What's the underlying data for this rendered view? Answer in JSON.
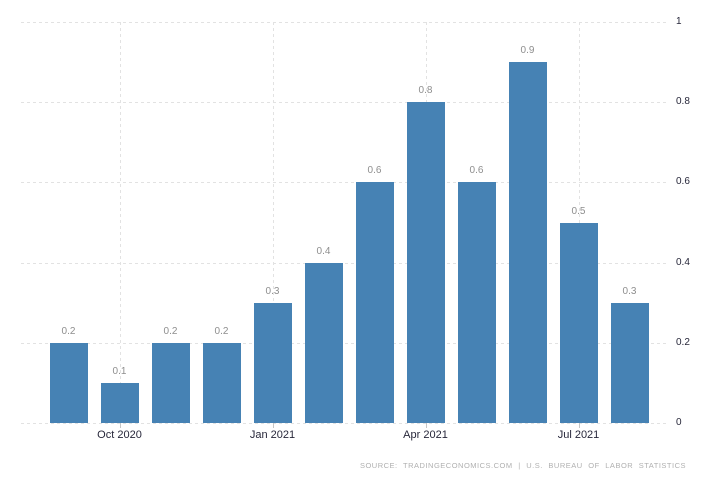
{
  "chart_data": {
    "type": "bar",
    "title": "",
    "xlabel": "",
    "ylabel": "",
    "ylim": [
      0,
      1
    ],
    "grid": true,
    "legend": "none",
    "values": [
      0.2,
      0.1,
      0.2,
      0.2,
      0.3,
      0.4,
      0.6,
      0.8,
      0.6,
      0.9,
      0.5,
      0.3
    ],
    "value_labels": [
      "0.2",
      "0.1",
      "0.2",
      "0.2",
      "0.3",
      "0.4",
      "0.6",
      "0.8",
      "0.6",
      "0.9",
      "0.5",
      "0.3"
    ],
    "x_ticks": [
      {
        "label": "Oct 2020",
        "bar_index": 1
      },
      {
        "label": "Jan 2021",
        "bar_index": 4
      },
      {
        "label": "Apr 2021",
        "bar_index": 7
      },
      {
        "label": "Jul 2021",
        "bar_index": 10
      }
    ],
    "y_ticks": [
      {
        "label": "0",
        "value": 0
      },
      {
        "label": "0.2",
        "value": 0.2
      },
      {
        "label": "0.4",
        "value": 0.4
      },
      {
        "label": "0.6",
        "value": 0.6
      },
      {
        "label": "0.8",
        "value": 0.8
      },
      {
        "label": "1",
        "value": 1
      }
    ],
    "colors": {
      "bar": "#4682b4",
      "value_label": "#8e8e8e",
      "axis_label": "#27273a",
      "gridline": "#e2e2e2",
      "tick_mark": "#c6c6c6",
      "source_text": "#b0b0b0",
      "background": "#ffffff"
    }
  },
  "footer": {
    "source_text": "SOURCE: TRADINGECONOMICS.COM | U.S. BUREAU OF LABOR STATISTICS"
  }
}
